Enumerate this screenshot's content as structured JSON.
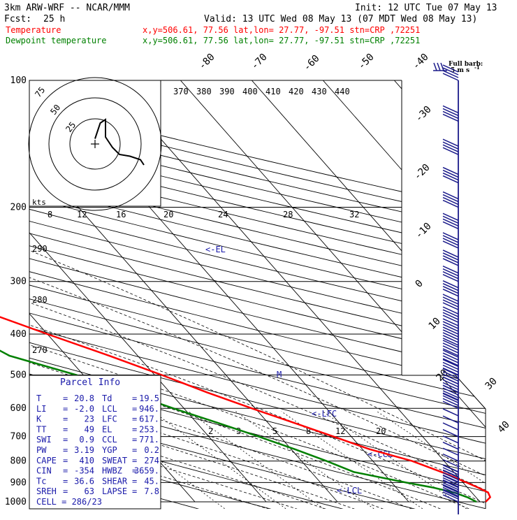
{
  "header": {
    "model": "3km ARW-WRF -- NCAR/MMM",
    "init": "Init: 12 UTC Tue 07 May 13",
    "fcst_label": "Fcst:",
    "fcst_value": "25 h",
    "valid": "Valid: 13 UTC Wed 08 May 13 (07 MDT Wed 08 May 13)"
  },
  "legend": [
    {
      "name": "Temperature",
      "info": "x,y=506.61, 77.56   lat,lon= 27.77, -97.51   stn=CRP ,72251",
      "color": "#ff0000"
    },
    {
      "name": "Dewpoint temperature",
      "info": "x,y=506.61, 77.56   lat,lon= 27.77, -97.51   stn=CRP ,72251",
      "color": "#008000"
    }
  ],
  "barb_key": {
    "line1": "Full barb:",
    "line2": "5 m s",
    "exp": "-1"
  },
  "hodograph": {
    "ring_labels": [
      "25",
      "50",
      "75"
    ],
    "units": "kts"
  },
  "parcel_info": {
    "title": "Parcel Info",
    "rows": [
      {
        "k1": "T",
        "v1": "20.8",
        "k2": "Td",
        "v2": "19.5"
      },
      {
        "k1": "LI",
        "v1": "-2.0",
        "k2": "LCL",
        "v2": "946."
      },
      {
        "k1": "K",
        "v1": "23",
        "k2": "LFC",
        "v2": "617."
      },
      {
        "k1": "TT",
        "v1": "49",
        "k2": "EL",
        "v2": "253."
      },
      {
        "k1": "SWI",
        "v1": "0.9",
        "k2": "CCL",
        "v2": "771."
      },
      {
        "k1": "PW",
        "v1": "3.19",
        "k2": "YGP",
        "v2": "0.2"
      },
      {
        "k1": "CAPE",
        "v1": "410",
        "k2": "SWEAT",
        "v2": "274"
      },
      {
        "k1": "CIN",
        "v1": "-354",
        "k2": "HWBZ",
        "v2": "3659."
      },
      {
        "k1": "Tc",
        "v1": "36.6",
        "k2": "SHEAR",
        "v2": "45."
      },
      {
        "k1": "SREH",
        "v1": "63",
        "k2": "LAPSE",
        "v2": "7.8"
      }
    ],
    "cell": "CELL = 286/23"
  },
  "chart_data": {
    "type": "line",
    "chart_kind": "skew-T log-p sounding",
    "y_axis": {
      "label": "Pressure (hPa)",
      "scale": "log",
      "range": [
        1000,
        100
      ],
      "ticks": [
        "100",
        "200",
        "300",
        "400",
        "500",
        "600",
        "700",
        "800",
        "900",
        "1000"
      ]
    },
    "isotherm_labels": [
      "-80",
      "-70",
      "-60",
      "-50",
      "-40",
      "-30",
      "-20",
      "-10",
      "0",
      "10",
      "20",
      "30",
      "40"
    ],
    "theta_labels": [
      "370",
      "380",
      "390",
      "400",
      "410",
      "420",
      "430",
      "440"
    ],
    "dry_adiabat_labels": [
      "290",
      "280",
      "270"
    ],
    "theta_e_labels": [
      "8",
      "12",
      "16",
      "20",
      "24",
      "28",
      "32"
    ],
    "mixing_ratio_labels": [
      "2",
      "3",
      "5",
      "8",
      "12",
      "20"
    ],
    "level_markers": [
      "<-EL",
      "M",
      "<-LFC",
      "<-CCL",
      "<-LCL"
    ],
    "series": [
      {
        "name": "Temperature",
        "color": "#ff0000",
        "points": [
          {
            "p": 1000,
            "t": 20.8
          },
          {
            "p": 975,
            "t": 22.0
          },
          {
            "p": 950,
            "t": 22.3
          },
          {
            "p": 925,
            "t": 21.5
          },
          {
            "p": 900,
            "t": 20.5
          },
          {
            "p": 850,
            "t": 18.3
          },
          {
            "p": 800,
            "t": 15.5
          },
          {
            "p": 750,
            "t": 11.0
          },
          {
            "p": 700,
            "t": 7.5
          },
          {
            "p": 650,
            "t": 3.7
          },
          {
            "p": 600,
            "t": -0.5
          },
          {
            "p": 550,
            "t": -4.8
          },
          {
            "p": 500,
            "t": -9.0
          },
          {
            "p": 450,
            "t": -14.0
          },
          {
            "p": 400,
            "t": -20.0
          },
          {
            "p": 350,
            "t": -26.5
          },
          {
            "p": 300,
            "t": -34.5
          },
          {
            "p": 250,
            "t": -45.5
          },
          {
            "p": 200,
            "t": -57.5
          },
          {
            "p": 175,
            "t": -64.0
          },
          {
            "p": 150,
            "t": -66.0
          },
          {
            "p": 125,
            "t": -64.0
          },
          {
            "p": 100,
            "t": -66.0
          }
        ]
      },
      {
        "name": "Dewpoint temperature",
        "color": "#008000",
        "points": [
          {
            "p": 1000,
            "t": 19.5
          },
          {
            "p": 975,
            "t": 18.8
          },
          {
            "p": 950,
            "t": 17.5
          },
          {
            "p": 925,
            "t": 15.2
          },
          {
            "p": 900,
            "t": 12.0
          },
          {
            "p": 850,
            "t": 6.0
          },
          {
            "p": 800,
            "t": 3.5
          },
          {
            "p": 750,
            "t": 0.5
          },
          {
            "p": 700,
            "t": -3.0
          },
          {
            "p": 650,
            "t": -7.0
          },
          {
            "p": 600,
            "t": -11.5
          },
          {
            "p": 550,
            "t": -16.0
          },
          {
            "p": 500,
            "t": -21.0
          },
          {
            "p": 450,
            "t": -28.0
          },
          {
            "p": 400,
            "t": -31.0
          },
          {
            "p": 350,
            "t": -35.0
          },
          {
            "p": 300,
            "t": -43.0
          },
          {
            "p": 250,
            "t": -57.0
          },
          {
            "p": 200,
            "t": -70.0
          },
          {
            "p": 175,
            "t": -76.0
          },
          {
            "p": 150,
            "t": -82.0
          },
          {
            "p": 125,
            "t": -88.0
          },
          {
            "p": 100,
            "t": -94.0
          }
        ]
      }
    ],
    "wind_barbs_pressure": [
      1000,
      975,
      950,
      925,
      900,
      875,
      850,
      825,
      800,
      775,
      750,
      725,
      700,
      675,
      650,
      625,
      600,
      575,
      550,
      525,
      500,
      475,
      450,
      425,
      400,
      375,
      350,
      325,
      300,
      275,
      250,
      225,
      200,
      175,
      150,
      125,
      100
    ],
    "hodograph_trace": [
      {
        "u": 0,
        "v": 3
      },
      {
        "u": 3,
        "v": 12
      },
      {
        "u": 6,
        "v": 14
      },
      {
        "u": 6,
        "v": 4
      },
      {
        "u": 10,
        "v": -2
      },
      {
        "u": 14,
        "v": -6
      },
      {
        "u": 20,
        "v": -7
      },
      {
        "u": 26,
        "v": -9
      },
      {
        "u": 28,
        "v": -12
      }
    ]
  }
}
